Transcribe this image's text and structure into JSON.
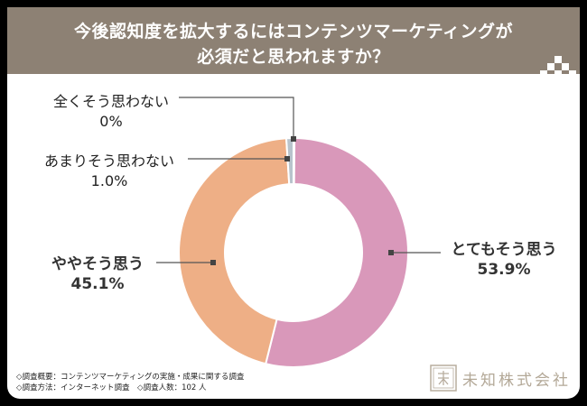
{
  "header": {
    "title_line1": "今後認知度を拡大するにはコンテンツマーケティングが",
    "title_line2": "必須だと思われますか？"
  },
  "chart_data": {
    "type": "donut",
    "title": "今後認知度を拡大するにはコンテンツマーケティングが必須だと思われますか？",
    "categories": [
      "とてもそう思う",
      "ややそう思う",
      "あまりそう思わない",
      "全くそう思わない"
    ],
    "values": [
      53.9,
      45.1,
      1.0,
      0
    ],
    "value_labels": [
      "53.9%",
      "45.1%",
      "1.0%",
      "0%"
    ],
    "colors": [
      "#d998ba",
      "#eeaf86",
      "#b8c3cc",
      "#7f93b3"
    ]
  },
  "footer": {
    "note_line1": "◇調査概要：コンテンツマーケティングの実施・成果に関する調査",
    "note_line2": "◇調査方法：インターネット調査　◇調査人数：102 人",
    "logo_text": "未知株式会社"
  }
}
